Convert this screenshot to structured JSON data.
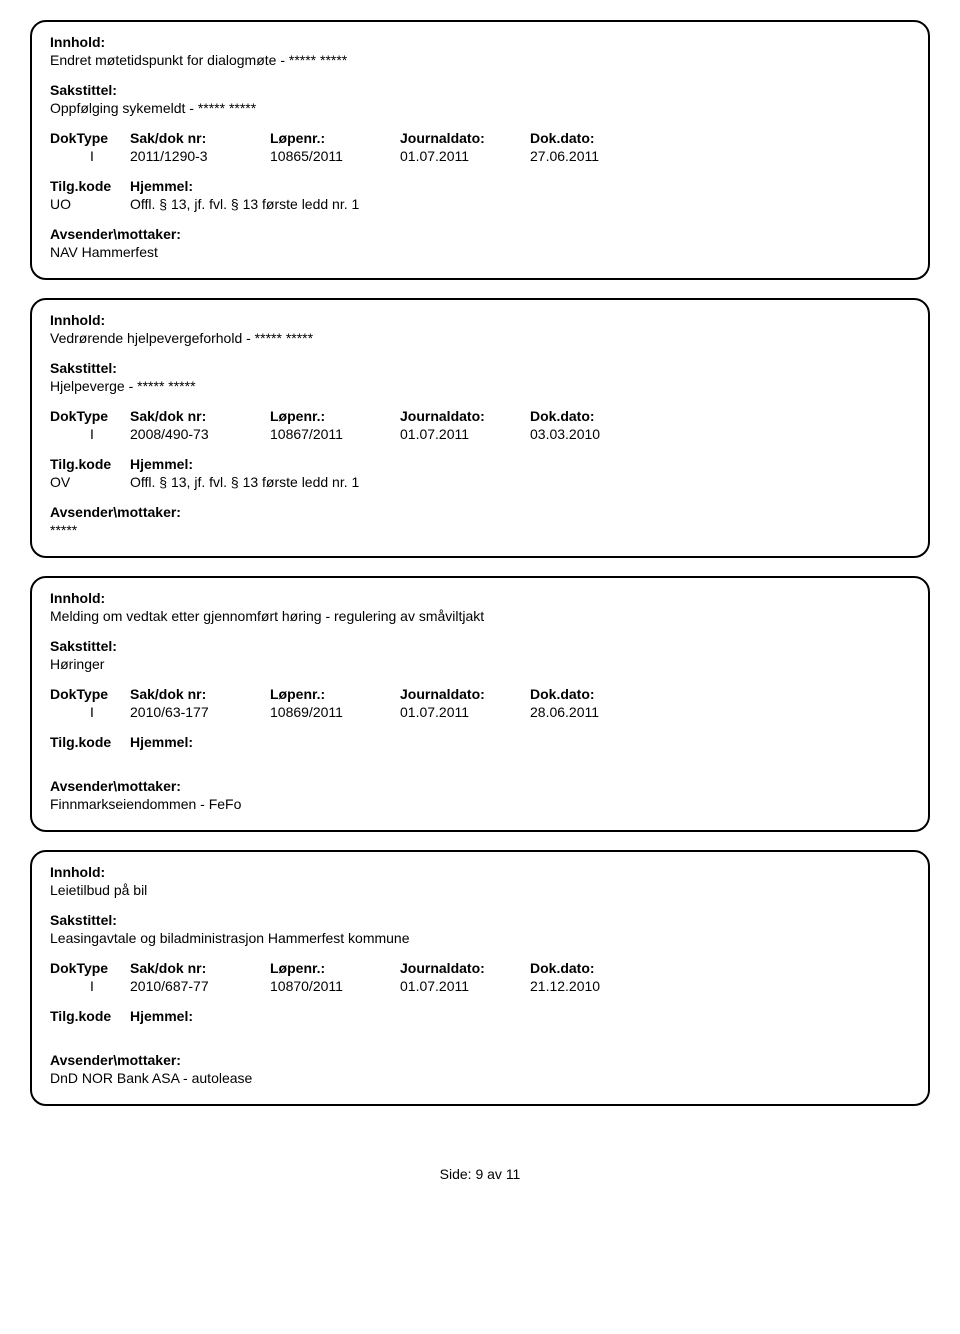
{
  "labels": {
    "innhold": "Innhold:",
    "sakstittel": "Sakstittel:",
    "doktype": "DokType",
    "sakdoknr": "Sak/dok nr:",
    "lopenr": "Løpenr.:",
    "journaldato": "Journaldato:",
    "dokdato": "Dok.dato:",
    "tilgkode": "Tilg.kode",
    "hjemmel": "Hjemmel:",
    "avsender": "Avsender\\mottaker:"
  },
  "records": [
    {
      "innhold": "Endret møtetidspunkt for dialogmøte - ***** *****",
      "sakstittel": "Oppfølging sykemeldt - ***** *****",
      "doktype": "I",
      "sakdok": "2011/1290-3",
      "lopenr": "10865/2011",
      "journaldato": "01.07.2011",
      "dokdato": "27.06.2011",
      "kode": "UO",
      "hjemmel": "Offl. § 13, jf. fvl. § 13 første ledd nr. 1",
      "avsender": "NAV Hammerfest",
      "show_hjemmel": true
    },
    {
      "innhold": "Vedrørende hjelpevergeforhold - ***** *****",
      "sakstittel": "Hjelpeverge - ***** *****",
      "doktype": "I",
      "sakdok": "2008/490-73",
      "lopenr": "10867/2011",
      "journaldato": "01.07.2011",
      "dokdato": "03.03.2010",
      "kode": "OV",
      "hjemmel": "Offl. § 13, jf. fvl. § 13 første ledd nr. 1",
      "avsender": "*****",
      "show_hjemmel": true
    },
    {
      "innhold": "Melding om vedtak etter gjennomført høring - regulering av småviltjakt",
      "sakstittel": "Høringer",
      "doktype": "I",
      "sakdok": "2010/63-177",
      "lopenr": "10869/2011",
      "journaldato": "01.07.2011",
      "dokdato": "28.06.2011",
      "kode": "",
      "hjemmel": "",
      "avsender": "Finnmarkseiendommen - FeFo",
      "show_hjemmel": false
    },
    {
      "innhold": "Leietilbud på bil",
      "sakstittel": "Leasingavtale og biladministrasjon Hammerfest kommune",
      "doktype": "I",
      "sakdok": "2010/687-77",
      "lopenr": "10870/2011",
      "journaldato": "01.07.2011",
      "dokdato": "21.12.2010",
      "kode": "",
      "hjemmel": "",
      "avsender": "DnD NOR Bank ASA - autolease",
      "show_hjemmel": false
    }
  ],
  "footer": {
    "side_label": "Side:",
    "page": "9",
    "av_label": "av",
    "total": "11"
  }
}
